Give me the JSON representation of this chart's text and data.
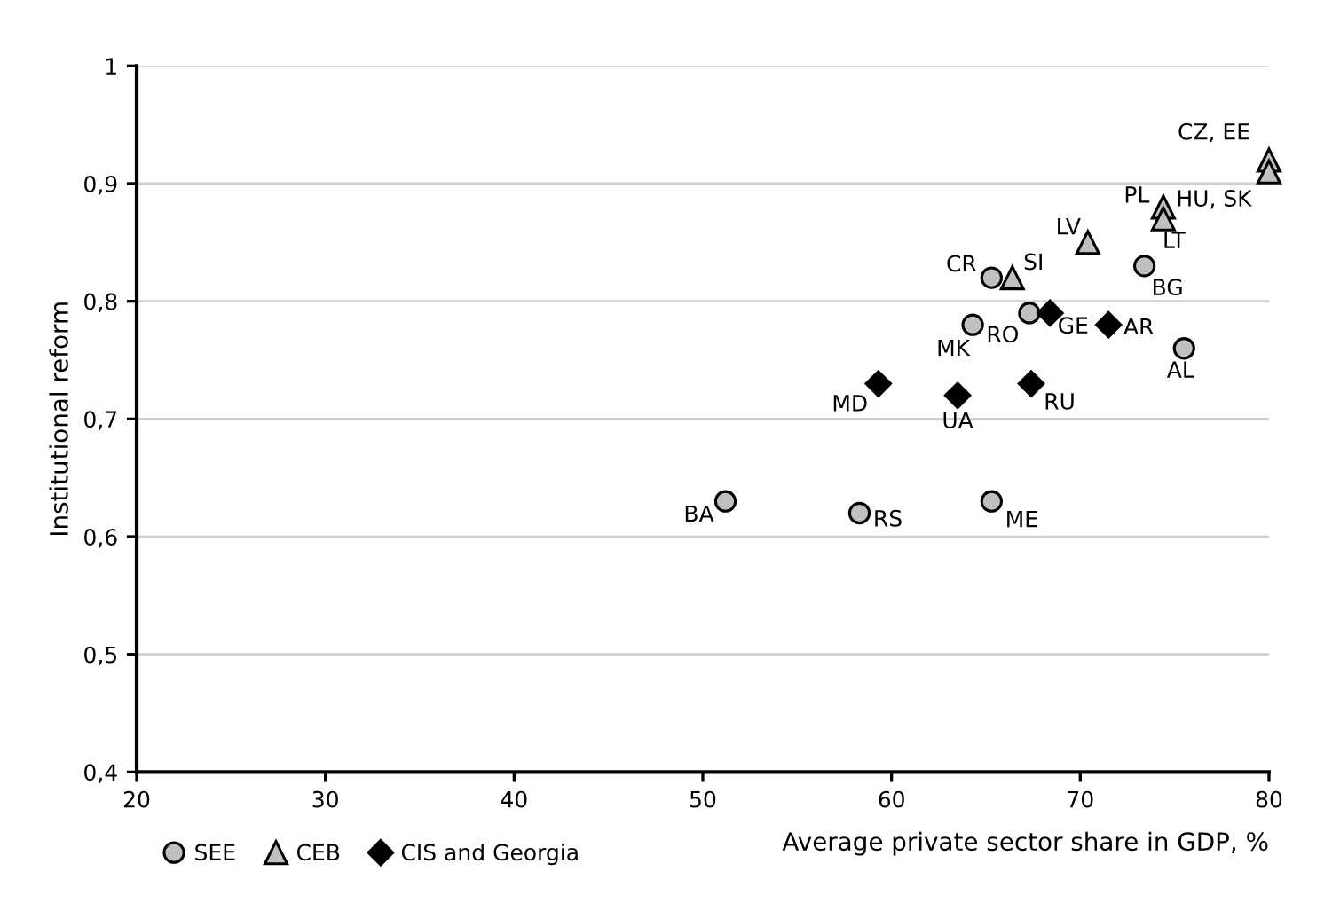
{
  "chart_data": {
    "type": "scatter",
    "xlabel": "Average private sector share in GDP, %",
    "ylabel": "Institutional reform",
    "xlim": [
      20,
      80
    ],
    "xticks": [
      20,
      30,
      40,
      50,
      60,
      70,
      80
    ],
    "ylim": [
      0.4,
      1
    ],
    "yticks": [
      {
        "value": 0.4,
        "label": "0,4"
      },
      {
        "value": 0.5,
        "label": "0,5"
      },
      {
        "value": 0.6,
        "label": "0,6"
      },
      {
        "value": 0.7,
        "label": "0,7"
      },
      {
        "value": 0.8,
        "label": "0,8"
      },
      {
        "value": 0.9,
        "label": "0,9"
      },
      {
        "value": 1,
        "label": "1"
      }
    ],
    "grid": "y",
    "legend": "bottom",
    "series": [
      {
        "name": "SEE",
        "color": "#c0c0c0",
        "marker": "circle",
        "x": [
          51.2,
          58.3,
          65.3,
          64.3,
          65.3,
          67.3,
          73.4,
          75.5
        ],
        "values": [
          0.63,
          0.62,
          0.63,
          0.78,
          0.82,
          0.79,
          0.83,
          0.76
        ]
      },
      {
        "name": "CEB",
        "color": "#c0c0c0",
        "marker": "triangle",
        "x": [
          66.4,
          70.4,
          74.4,
          74.4,
          80,
          80
        ],
        "values": [
          0.82,
          0.85,
          0.88,
          0.87,
          0.92,
          0.91
        ]
      },
      {
        "name": "CIS and Georgia",
        "color": "#000000",
        "marker": "diamond",
        "x": [
          59.3,
          63.5,
          67.4,
          68.4,
          71.5
        ],
        "values": [
          0.73,
          0.72,
          0.73,
          0.79,
          0.78
        ]
      }
    ],
    "annotations": [
      {
        "text": "BA",
        "x": 51.2,
        "y": 0.63
      },
      {
        "text": "RS",
        "x": 58.3,
        "y": 0.62
      },
      {
        "text": "ME",
        "x": 65.3,
        "y": 0.63
      },
      {
        "text": "MK",
        "x": 64.3,
        "y": 0.78
      },
      {
        "text": "CR",
        "x": 65.3,
        "y": 0.82
      },
      {
        "text": "RO",
        "x": 67.3,
        "y": 0.79
      },
      {
        "text": "BG",
        "x": 73.4,
        "y": 0.83
      },
      {
        "text": "AL",
        "x": 75.5,
        "y": 0.76
      },
      {
        "text": "SI",
        "x": 66.4,
        "y": 0.82
      },
      {
        "text": "LV",
        "x": 70.4,
        "y": 0.85
      },
      {
        "text": "PL",
        "x": 74.4,
        "y": 0.88
      },
      {
        "text": "LT",
        "x": 74.4,
        "y": 0.87
      },
      {
        "text": "CZ, EE",
        "x": 80,
        "y": 0.92
      },
      {
        "text": "HU, SK",
        "x": 80,
        "y": 0.91
      },
      {
        "text": "MD",
        "x": 59.3,
        "y": 0.73
      },
      {
        "text": "UA",
        "x": 63.5,
        "y": 0.72
      },
      {
        "text": "RU",
        "x": 67.4,
        "y": 0.73
      },
      {
        "text": "GE",
        "x": 68.4,
        "y": 0.79
      },
      {
        "text": "AR",
        "x": 71.5,
        "y": 0.78
      }
    ]
  }
}
